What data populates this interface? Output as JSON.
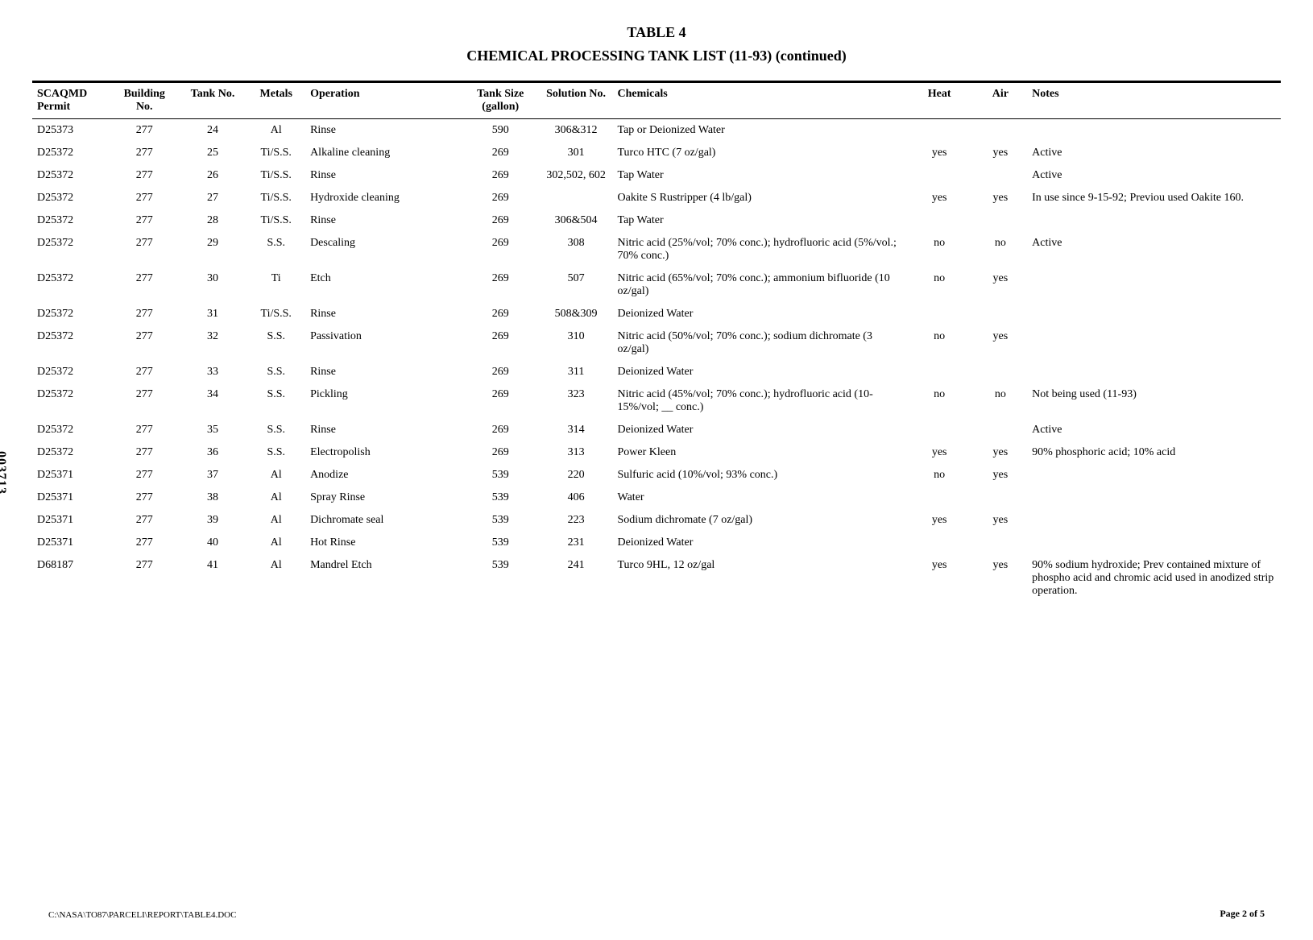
{
  "title_top": "TABLE 4",
  "title_sub": "CHEMICAL PROCESSING TANK LIST (11-93) (continued)",
  "side_number": "003713",
  "footer_path": "C:\\NASA\\TO87\\PARCELI\\REPORT\\TABLE4.DOC",
  "footer_page": "Page 2 of 5",
  "columns": [
    "SCAQMD Permit",
    "Building No.",
    "Tank No.",
    "Metals",
    "Operation",
    "Tank Size (gallon)",
    "Solution No.",
    "Chemicals",
    "Heat",
    "Air",
    "Notes"
  ],
  "rows": [
    {
      "permit": "D25373",
      "bldg": "277",
      "tank": "24",
      "metals": "Al",
      "op": "Rinse",
      "size": "590",
      "sol": "306&312",
      "chem": "Tap or Deionized Water",
      "heat": "",
      "air": "",
      "notes": ""
    },
    {
      "permit": "D25372",
      "bldg": "277",
      "tank": "25",
      "metals": "Ti/S.S.",
      "op": "Alkaline cleaning",
      "size": "269",
      "sol": "301",
      "chem": "Turco HTC (7 oz/gal)",
      "heat": "yes",
      "air": "yes",
      "notes": "Active"
    },
    {
      "permit": "D25372",
      "bldg": "277",
      "tank": "26",
      "metals": "Ti/S.S.",
      "op": "Rinse",
      "size": "269",
      "sol": "302,502, 602",
      "chem": "Tap Water",
      "heat": "",
      "air": "",
      "notes": "Active"
    },
    {
      "permit": "D25372",
      "bldg": "277",
      "tank": "27",
      "metals": "Ti/S.S.",
      "op": "Hydroxide cleaning",
      "size": "269",
      "sol": "",
      "chem": "Oakite S Rustripper (4 lb/gal)",
      "heat": "yes",
      "air": "yes",
      "notes": "In use since 9-15-92; Previou used Oakite 160."
    },
    {
      "permit": "D25372",
      "bldg": "277",
      "tank": "28",
      "metals": "Ti/S.S.",
      "op": "Rinse",
      "size": "269",
      "sol": "306&504",
      "chem": "Tap Water",
      "heat": "",
      "air": "",
      "notes": ""
    },
    {
      "permit": "D25372",
      "bldg": "277",
      "tank": "29",
      "metals": "S.S.",
      "op": "Descaling",
      "size": "269",
      "sol": "308",
      "chem": "Nitric acid (25%/vol; 70% conc.); hydrofluoric acid (5%/vol.; 70% conc.)",
      "heat": "no",
      "air": "no",
      "notes": "Active"
    },
    {
      "permit": "D25372",
      "bldg": "277",
      "tank": "30",
      "metals": "Ti",
      "op": "Etch",
      "size": "269",
      "sol": "507",
      "chem": "Nitric acid (65%/vol; 70% conc.); ammonium bifluoride (10 oz/gal)",
      "heat": "no",
      "air": "yes",
      "notes": ""
    },
    {
      "permit": "D25372",
      "bldg": "277",
      "tank": "31",
      "metals": "Ti/S.S.",
      "op": "Rinse",
      "size": "269",
      "sol": "508&309",
      "chem": "Deionized Water",
      "heat": "",
      "air": "",
      "notes": ""
    },
    {
      "permit": "D25372",
      "bldg": "277",
      "tank": "32",
      "metals": "S.S.",
      "op": "Passivation",
      "size": "269",
      "sol": "310",
      "chem": "Nitric acid (50%/vol; 70% conc.); sodium dichromate (3 oz/gal)",
      "heat": "no",
      "air": "yes",
      "notes": ""
    },
    {
      "permit": "D25372",
      "bldg": "277",
      "tank": "33",
      "metals": "S.S.",
      "op": "Rinse",
      "size": "269",
      "sol": "311",
      "chem": "Deionized Water",
      "heat": "",
      "air": "",
      "notes": ""
    },
    {
      "permit": "D25372",
      "bldg": "277",
      "tank": "34",
      "metals": "S.S.",
      "op": "Pickling",
      "size": "269",
      "sol": "323",
      "chem": "Nitric acid (45%/vol; 70% conc.); hydrofluoric acid (10-15%/vol; __ conc.)",
      "heat": "no",
      "air": "no",
      "notes": "Not being used (11-93)"
    },
    {
      "permit": "D25372",
      "bldg": "277",
      "tank": "35",
      "metals": "S.S.",
      "op": "Rinse",
      "size": "269",
      "sol": "314",
      "chem": "Deionized Water",
      "heat": "",
      "air": "",
      "notes": "Active"
    },
    {
      "permit": "D25372",
      "bldg": "277",
      "tank": "36",
      "metals": "S.S.",
      "op": "Electropolish",
      "size": "269",
      "sol": "313",
      "chem": "Power Kleen",
      "heat": "yes",
      "air": "yes",
      "notes": "90% phosphoric acid; 10% acid"
    },
    {
      "permit": "D25371",
      "bldg": "277",
      "tank": "37",
      "metals": "Al",
      "op": "Anodize",
      "size": "539",
      "sol": "220",
      "chem": "Sulfuric acid (10%/vol; 93% conc.)",
      "heat": "no",
      "air": "yes",
      "notes": ""
    },
    {
      "permit": "D25371",
      "bldg": "277",
      "tank": "38",
      "metals": "Al",
      "op": "Spray Rinse",
      "size": "539",
      "sol": "406",
      "chem": "Water",
      "heat": "",
      "air": "",
      "notes": ""
    },
    {
      "permit": "D25371",
      "bldg": "277",
      "tank": "39",
      "metals": "Al",
      "op": "Dichromate seal",
      "size": "539",
      "sol": "223",
      "chem": "Sodium dichromate (7 oz/gal)",
      "heat": "yes",
      "air": "yes",
      "notes": ""
    },
    {
      "permit": "D25371",
      "bldg": "277",
      "tank": "40",
      "metals": "Al",
      "op": "Hot Rinse",
      "size": "539",
      "sol": "231",
      "chem": "Deionized Water",
      "heat": "",
      "air": "",
      "notes": ""
    },
    {
      "permit": "D68187",
      "bldg": "277",
      "tank": "41",
      "metals": "Al",
      "op": "Mandrel Etch",
      "size": "539",
      "sol": "241",
      "chem": "Turco 9HL, 12 oz/gal",
      "heat": "yes",
      "air": "yes",
      "notes": "90% sodium hydroxide; Prev contained mixture of phospho acid and chromic acid used in anodized strip operation."
    }
  ]
}
